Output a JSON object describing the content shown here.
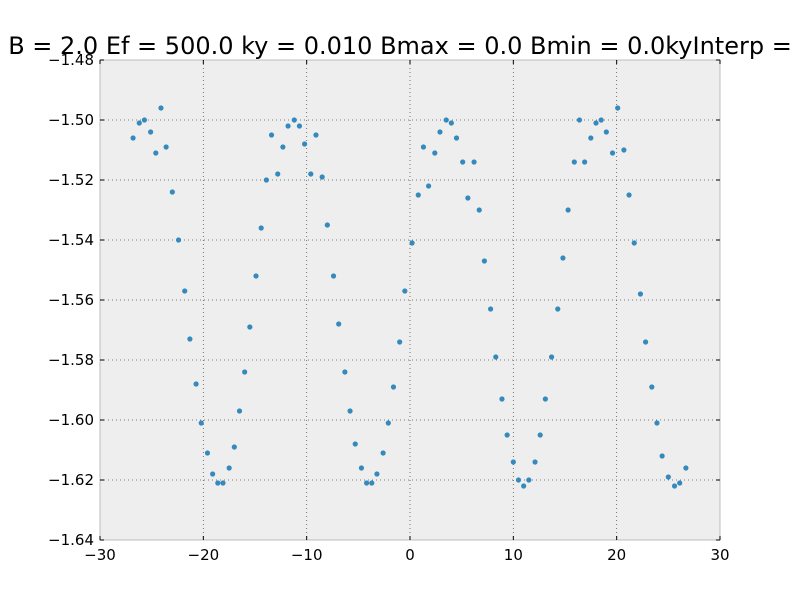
{
  "chart_data": {
    "type": "scatter",
    "title": "B = 2.0 Ef = 500.0 ky = 0.010 Bmax = 0.0 Bmin = 0.0kyInterp =",
    "xlabel": "",
    "ylabel": "",
    "xlim": [
      -30,
      30
    ],
    "ylim": [
      -1.64,
      -1.48
    ],
    "xticks": [
      -30,
      -20,
      -10,
      0,
      10,
      20,
      30
    ],
    "xtick_labels": [
      "−30",
      "−20",
      "−10",
      "0",
      "10",
      "20",
      "30"
    ],
    "yticks": [
      -1.48,
      -1.5,
      -1.52,
      -1.54,
      -1.56,
      -1.58,
      -1.6,
      -1.62,
      -1.64
    ],
    "ytick_labels": [
      "−1.48",
      "−1.50",
      "−1.52",
      "−1.54",
      "−1.56",
      "−1.58",
      "−1.60",
      "−1.62",
      "−1.64"
    ],
    "grid": true,
    "colors": {
      "points": "#348abd",
      "background": "#eeeeee",
      "grid": "#555555",
      "frame": "#bcbcbc"
    },
    "series": [
      {
        "x": [
          -26.8,
          -26.2,
          -25.7,
          -25.1,
          -24.6,
          -24.1,
          -23.6,
          -23.0,
          -22.4,
          -21.8,
          -21.3,
          -20.7,
          -20.2,
          -19.6,
          -19.1,
          -18.6,
          -18.1,
          -17.5,
          -17.0,
          -16.5,
          -16.0,
          -15.5,
          -14.9,
          -14.4,
          -13.9,
          -13.4,
          -12.8,
          -12.3,
          -11.8,
          -11.2,
          -10.7,
          -10.2,
          -9.6,
          -9.1,
          -8.5,
          -8.0,
          -7.4,
          -6.9,
          -6.3,
          -5.8,
          -5.3,
          -4.7,
          -4.2,
          -3.7,
          -3.2,
          -2.6,
          -2.1,
          -1.6,
          -1.0,
          -0.5,
          0.2,
          0.8,
          1.3,
          1.8,
          2.4,
          2.9,
          3.5,
          4.0,
          4.5,
          5.1,
          5.6,
          6.2,
          6.7,
          7.2,
          7.8,
          8.3,
          8.9,
          9.4,
          10.0,
          10.5,
          11.0,
          11.5,
          12.1,
          12.6,
          13.1,
          13.7,
          14.3,
          14.8,
          15.3,
          15.9,
          16.4,
          16.9,
          17.5,
          18.0,
          18.5,
          19.0,
          19.6,
          20.1,
          20.7,
          21.2,
          21.7,
          22.3,
          22.8,
          23.4,
          23.9,
          24.4,
          25.0,
          25.6,
          26.1,
          26.7
        ],
        "y": [
          -1.506,
          -1.501,
          -1.5,
          -1.504,
          -1.511,
          -1.496,
          -1.509,
          -1.524,
          -1.54,
          -1.557,
          -1.573,
          -1.588,
          -1.601,
          -1.611,
          -1.618,
          -1.621,
          -1.621,
          -1.616,
          -1.609,
          -1.597,
          -1.584,
          -1.569,
          -1.552,
          -1.536,
          -1.52,
          -1.505,
          -1.518,
          -1.509,
          -1.502,
          -1.5,
          -1.502,
          -1.508,
          -1.518,
          -1.505,
          -1.519,
          -1.535,
          -1.552,
          -1.568,
          -1.584,
          -1.597,
          -1.608,
          -1.616,
          -1.621,
          -1.621,
          -1.618,
          -1.611,
          -1.601,
          -1.589,
          -1.574,
          -1.557,
          -1.541,
          -1.525,
          -1.509,
          -1.522,
          -1.511,
          -1.504,
          -1.5,
          -1.501,
          -1.506,
          -1.514,
          -1.526,
          -1.514,
          -1.53,
          -1.547,
          -1.563,
          -1.579,
          -1.593,
          -1.605,
          -1.614,
          -1.62,
          -1.622,
          -1.62,
          -1.614,
          -1.605,
          -1.593,
          -1.579,
          -1.563,
          -1.546,
          -1.53,
          -1.514,
          -1.5,
          -1.514,
          -1.506,
          -1.501,
          -1.5,
          -1.504,
          -1.511,
          -1.496,
          -1.51,
          -1.525,
          -1.541,
          -1.558,
          -1.574,
          -1.589,
          -1.601,
          -1.612,
          -1.619,
          -1.622,
          -1.621,
          -1.616
        ]
      }
    ]
  }
}
